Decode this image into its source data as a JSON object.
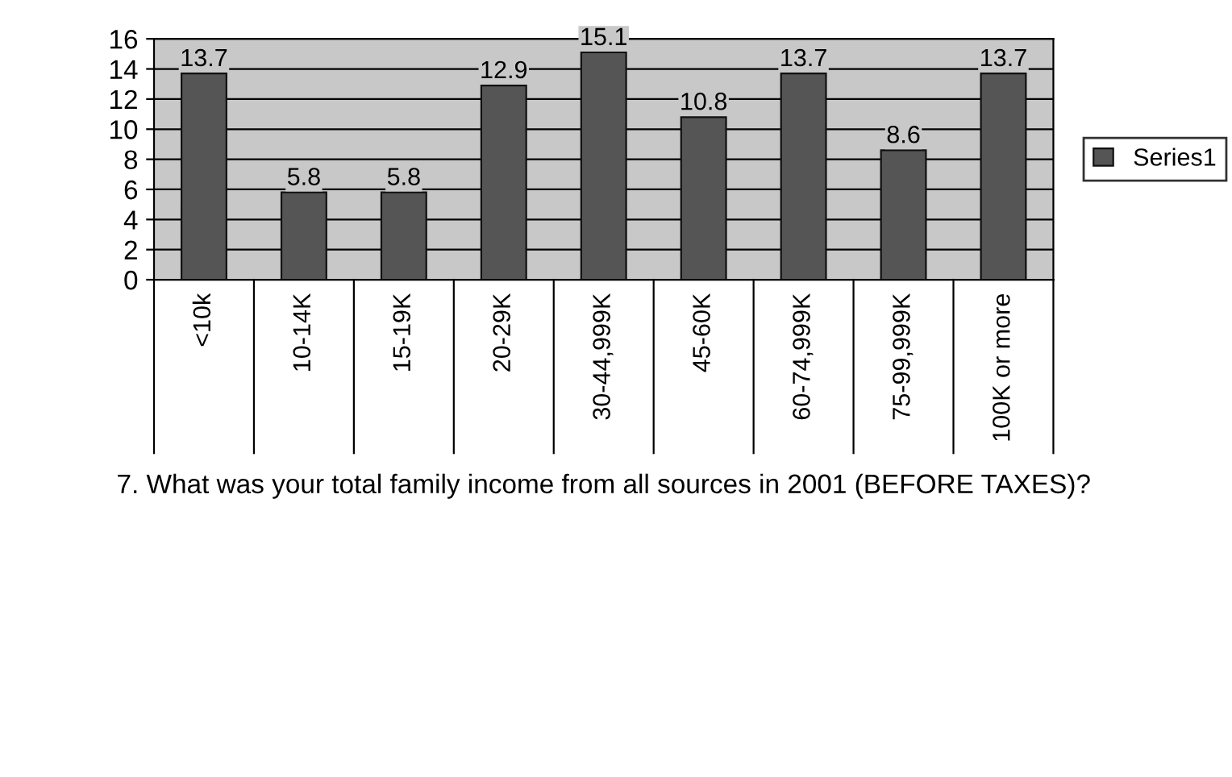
{
  "chart_data": {
    "type": "bar",
    "xlabel": "7. What was your total family income from all sources in 2001 (BEFORE TAXES)?",
    "categories": [
      "<10k",
      "10-14K",
      "15-19K",
      "20-29K",
      "30-44,999K",
      "45-60K",
      "60-74,999K",
      "75-99,999K",
      "100K or more"
    ],
    "series": [
      {
        "name": "Series1",
        "color": "#555555",
        "values": [
          13.7,
          5.8,
          5.8,
          12.9,
          15.1,
          10.8,
          13.7,
          8.6,
          13.7
        ]
      }
    ],
    "ylim": [
      0,
      16
    ],
    "yticks": [
      0,
      2,
      4,
      6,
      8,
      10,
      12,
      14,
      16
    ],
    "grid": "y",
    "legend": "right",
    "data_labels": true
  }
}
